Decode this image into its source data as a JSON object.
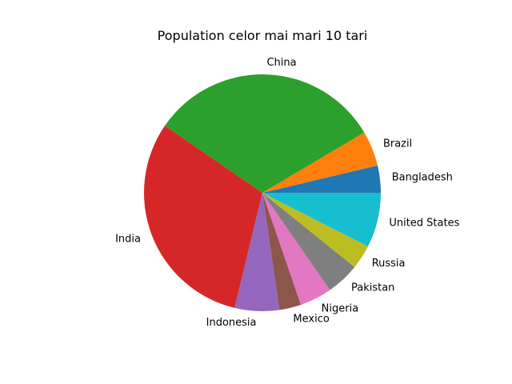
{
  "chart_data": {
    "type": "pie",
    "title": "Population celor mai mari 10 tari",
    "categories": [
      "Bangladesh",
      "Brazil",
      "China",
      "India",
      "Indonesia",
      "Mexico",
      "Nigeria",
      "Pakistan",
      "Russia",
      "United States"
    ],
    "values": [
      161,
      209,
      1386,
      1339,
      264,
      129,
      191,
      197,
      144,
      325
    ],
    "colors": [
      "#1f77b4",
      "#ff7f0e",
      "#2ca02c",
      "#d62728",
      "#9467bd",
      "#8c564b",
      "#e377c2",
      "#7f7f7f",
      "#bcbd22",
      "#17becf"
    ],
    "start_angle_deg": 0,
    "direction": "counterclockwise",
    "legend": "none",
    "grid": false
  }
}
